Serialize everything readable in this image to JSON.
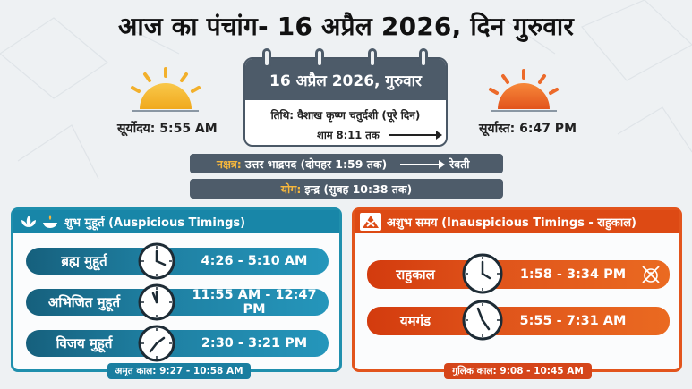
{
  "title": "आज का पंचांग- 16 अप्रैल 2026, दिन गुरुवार",
  "sunrise": {
    "label": "सूर्योदय: 5:55 AM",
    "icon": "sunrise-icon"
  },
  "sunset": {
    "label": "सूर्यास्त: 6:47 PM",
    "icon": "sunset-icon"
  },
  "calendar": {
    "date": "16 अप्रैल 2026, गुरुवार",
    "tithi": "तिथि: वैशाख कृष्ण चतुर्दशी (पूरे दिन)",
    "until": "शाम 8:11 तक"
  },
  "nakshatra": {
    "key": "नक्षत्र:",
    "value": "उत्तर भाद्रपद (दोपहर 1:59 तक)",
    "next": "रेवती"
  },
  "yoga": {
    "key": "योग:",
    "value": "इन्द्र (सुबह 10:38 तक)"
  },
  "auspicious": {
    "heading": "शुभ मुहूर्त (Auspicious Timings)",
    "rows": [
      {
        "name": "ब्रह्म मुहूर्त",
        "time": "4:26 - 5:10 AM"
      },
      {
        "name": "अभिजित मुहूर्त",
        "time": "11:55 AM - 12:47 PM"
      },
      {
        "name": "विजय मुहूर्त",
        "time": "2:30 - 3:21 PM"
      }
    ],
    "footer": "अमृत काल: 9:27 - 10:58 AM"
  },
  "inauspicious": {
    "heading": "अशुभ समय (Inauspicious Timings - राहुकाल)",
    "rows": [
      {
        "name": "राहुकाल",
        "time": "1:58 - 3:34 PM"
      },
      {
        "name": "यमगंड",
        "time": "5:55 - 7:31 AM"
      }
    ],
    "footer": "गुलिक काल: 9:08 - 10:45 AM"
  },
  "colors": {
    "blue": "#1886a8",
    "orange": "#dd4a14",
    "slate": "#4d5b69",
    "gold": "#f6b73c"
  }
}
